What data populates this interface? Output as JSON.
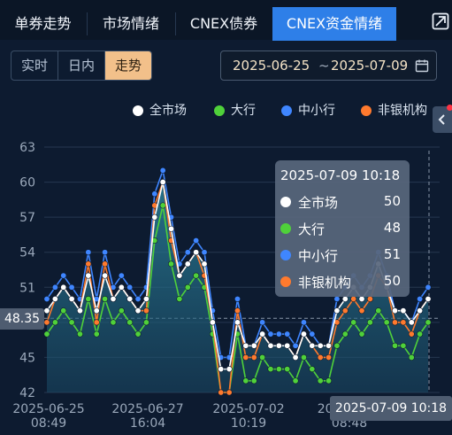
{
  "tabs": [
    {
      "label": "单券走势",
      "active": false
    },
    {
      "label": "市场情绪",
      "active": false
    },
    {
      "label": "CNEX债券",
      "active": false
    },
    {
      "label": "CNEX资金情绪",
      "active": true
    }
  ],
  "icons": {
    "expand": "expand-icon",
    "collapse": "chevron-left-icon",
    "calendar": "calendar-icon"
  },
  "modes": [
    {
      "label": "实时",
      "active": false
    },
    {
      "label": "日内",
      "active": false
    },
    {
      "label": "走势",
      "active": true
    }
  ],
  "date_range": {
    "start": "2025-06-25",
    "separator": "~",
    "end": "2025-07-09"
  },
  "colors": {
    "accent": "#2e7fe8",
    "active_mode": "#f2c08a",
    "all_market": "#ffffff",
    "big_banks": "#4fd13a",
    "small_banks": "#3f86ff",
    "non_banks": "#ff7a2e"
  },
  "tooltip": {
    "title": "2025-07-09 10:18",
    "rows": [
      {
        "name": "全市场",
        "value": "50"
      },
      {
        "name": "大行",
        "value": "48"
      },
      {
        "name": "中小行",
        "value": "51"
      },
      {
        "name": "非银机构",
        "value": "50"
      }
    ]
  },
  "crosshair": {
    "y_value": "48.35",
    "x_label": "2025-07-09 10:18"
  },
  "chart_data": {
    "type": "line",
    "ylim": [
      42,
      63
    ],
    "yticks": [
      "63",
      "60",
      "57",
      "54",
      "51",
      "48",
      "45",
      "42"
    ],
    "xticks": [
      {
        "date": "2025-06-25",
        "time": "08:49"
      },
      {
        "date": "2025-06-27",
        "time": "16:04"
      },
      {
        "date": "2025-07-02",
        "time": "10:19"
      },
      {
        "date": "2025-07-0",
        "time": "08:48"
      }
    ],
    "grid": true,
    "legend_position": "top-right",
    "series": [
      {
        "name": "全市场",
        "color": "#ffffff",
        "values": [
          49,
          50,
          51,
          50,
          49,
          52,
          49,
          52,
          50,
          51,
          50,
          49,
          50,
          57,
          60,
          56,
          52,
          53,
          54,
          53,
          48,
          44,
          44,
          48,
          46,
          46,
          47,
          46,
          46,
          46,
          45,
          47,
          46,
          46,
          46,
          49,
          50,
          51,
          50,
          51,
          53,
          51,
          49,
          49,
          48,
          49,
          50
        ]
      },
      {
        "name": "大行",
        "color": "#4fd13a",
        "values": [
          47,
          48,
          49,
          48,
          47,
          50,
          47,
          50,
          48,
          49,
          48,
          47,
          48,
          55,
          58,
          53,
          50,
          51,
          52,
          51,
          47,
          42,
          42,
          47,
          43,
          43,
          45,
          44,
          44,
          44,
          43,
          45,
          44,
          43,
          43,
          46,
          47,
          48,
          47,
          48,
          49,
          48,
          46,
          46,
          45,
          47,
          48
        ]
      },
      {
        "name": "中小行",
        "color": "#3f86ff",
        "values": [
          50,
          51,
          52,
          51,
          50,
          54,
          50,
          54,
          51,
          52,
          51,
          50,
          51,
          59,
          61,
          57,
          53,
          54,
          55,
          54,
          49,
          45,
          45,
          50,
          46,
          46,
          48,
          47,
          47,
          47,
          46,
          48,
          47,
          46,
          46,
          50,
          51,
          52,
          51,
          52,
          54,
          52,
          49,
          49,
          48,
          50,
          51
        ]
      },
      {
        "name": "非银机构",
        "color": "#ff7a2e",
        "values": [
          48,
          50,
          51,
          50,
          49,
          53,
          48,
          53,
          50,
          51,
          50,
          49,
          49,
          58,
          60,
          55,
          52,
          53,
          54,
          52,
          48,
          42,
          42,
          49,
          45,
          45,
          47,
          46,
          46,
          46,
          45,
          47,
          46,
          45,
          45,
          48,
          49,
          50,
          49,
          50,
          52,
          51,
          48,
          48,
          47,
          49,
          50
        ]
      }
    ]
  }
}
